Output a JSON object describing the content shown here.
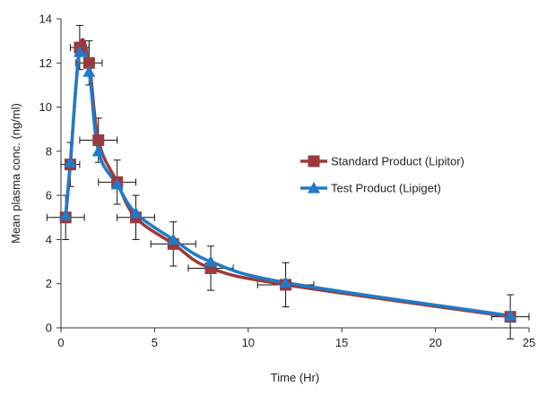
{
  "chart_data": {
    "type": "line",
    "title": "",
    "xlabel": "Time (Hr)",
    "ylabel": "Mean plasma conc. (ng/ml)",
    "xlim": [
      0,
      25
    ],
    "ylim": [
      0,
      14
    ],
    "xticks": [
      0,
      5,
      10,
      15,
      20,
      25
    ],
    "yticks": [
      0,
      2,
      4,
      6,
      8,
      10,
      12,
      14
    ],
    "grid": false,
    "legend_position": "right",
    "x": [
      0.25,
      0.5,
      1,
      1.5,
      2,
      3,
      4,
      6,
      8,
      12,
      24
    ],
    "series": [
      {
        "name": "Standard Product (Lipitor)",
        "color": "#9B3A3A",
        "marker": "square",
        "values": [
          5.0,
          7.4,
          12.7,
          12.0,
          8.5,
          6.6,
          5.0,
          3.8,
          2.7,
          1.95,
          0.5
        ],
        "x_error": [
          1.0,
          0.5,
          0.5,
          0.7,
          1.0,
          1.0,
          1.0,
          1.2,
          1.2,
          1.5,
          1.0
        ],
        "y_error": [
          1.0,
          1.0,
          1.0,
          1.0,
          1.0,
          1.0,
          1.0,
          1.0,
          1.0,
          1.0,
          1.0
        ]
      },
      {
        "name": "Test Product (Lipiget)",
        "color": "#1F7BC8",
        "marker": "triangle",
        "values": [
          5.1,
          7.5,
          12.5,
          11.6,
          8.0,
          6.5,
          5.2,
          4.0,
          3.0,
          2.05,
          0.55
        ],
        "x_error": [],
        "y_error": []
      }
    ]
  }
}
